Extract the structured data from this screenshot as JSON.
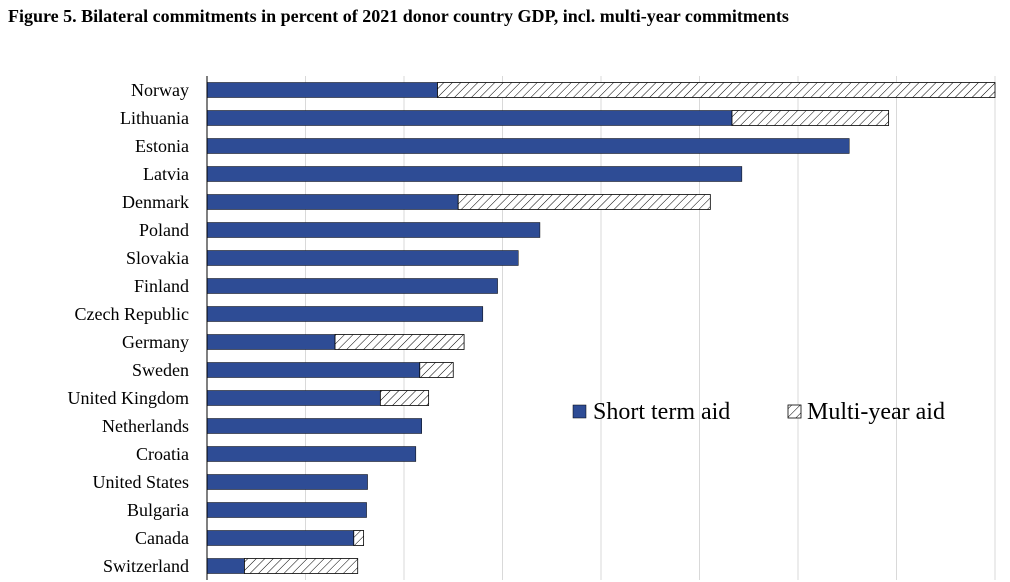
{
  "title": "Figure 5. Bilateral commitments in percent of 2021 donor country GDP, incl. multi-year commitments",
  "colors": {
    "short_term": "#2E4C95",
    "multi_year_hatch": "#000000",
    "grid": "#d9d9d9",
    "axis": "#000000"
  },
  "chart_data": {
    "type": "bar",
    "orientation": "horizontal",
    "stacked": true,
    "title": "Figure 5. Bilateral commitments in percent of 2021 donor country GDP, incl. multi-year commitments",
    "xlabel": "",
    "ylabel": "",
    "categories": [
      "Norway",
      "Lithuania",
      "Estonia",
      "Latvia",
      "Denmark",
      "Poland",
      "Slovakia",
      "Finland",
      "Czech Republic",
      "Germany",
      "Sweden",
      "United Kingdom",
      "Netherlands",
      "Croatia",
      "United States",
      "Bulgaria",
      "Canada",
      "Switzerland"
    ],
    "series": [
      {
        "name": "Short term aid",
        "values": [
          0.234,
          0.533,
          0.652,
          0.543,
          0.255,
          0.338,
          0.316,
          0.295,
          0.28,
          0.13,
          0.216,
          0.176,
          0.218,
          0.212,
          0.163,
          0.162,
          0.149,
          0.038
        ]
      },
      {
        "name": "Multi-year aid",
        "values": [
          0.566,
          0.159,
          0.0,
          0.0,
          0.256,
          0.0,
          0.0,
          0.0,
          0.0,
          0.131,
          0.034,
          0.049,
          0.0,
          0.0,
          0.0,
          0.0,
          0.01,
          0.115
        ]
      }
    ],
    "xlim": [
      0,
      0.8
    ],
    "xgrid_step": 0.1,
    "x_tick_labels_shown": false,
    "grid": true,
    "legend_position": "center-right",
    "legend": [
      "Short term aid",
      "Multi-year aid"
    ]
  }
}
